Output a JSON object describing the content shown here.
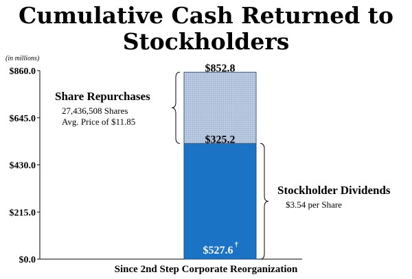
{
  "chart_data": {
    "type": "bar",
    "stacked": true,
    "title": "Cumulative Cash Returned to Stockholders",
    "xlabel": "Since 2nd Step Corporate Reorganization",
    "ylabel": "",
    "units_note": "(in millions)",
    "ylim": [
      0,
      860
    ],
    "yticks": [
      0,
      215,
      430,
      645,
      860
    ],
    "ytick_labels": [
      "$0.0",
      "$215.0",
      "$430.0",
      "$645.0",
      "$860.0"
    ],
    "series": [
      {
        "name": "Stockholder Dividends",
        "values": [
          527.6
        ],
        "color": "#1a73c4",
        "label": "$527.6",
        "label_mark": "†"
      },
      {
        "name": "Share Repurchases",
        "values": [
          325.2
        ],
        "color": "#a9bcd6",
        "label": "$325.2"
      }
    ],
    "total": 852.8,
    "total_label": "$852.8",
    "annotations": {
      "repurchases": {
        "title": "Share Repurchases",
        "line1": "27,436,508 Shares",
        "line2": "Avg. Price of $11.85"
      },
      "dividends": {
        "title": "Stockholder Dividends",
        "line1": "$3.54 per Share"
      }
    }
  }
}
